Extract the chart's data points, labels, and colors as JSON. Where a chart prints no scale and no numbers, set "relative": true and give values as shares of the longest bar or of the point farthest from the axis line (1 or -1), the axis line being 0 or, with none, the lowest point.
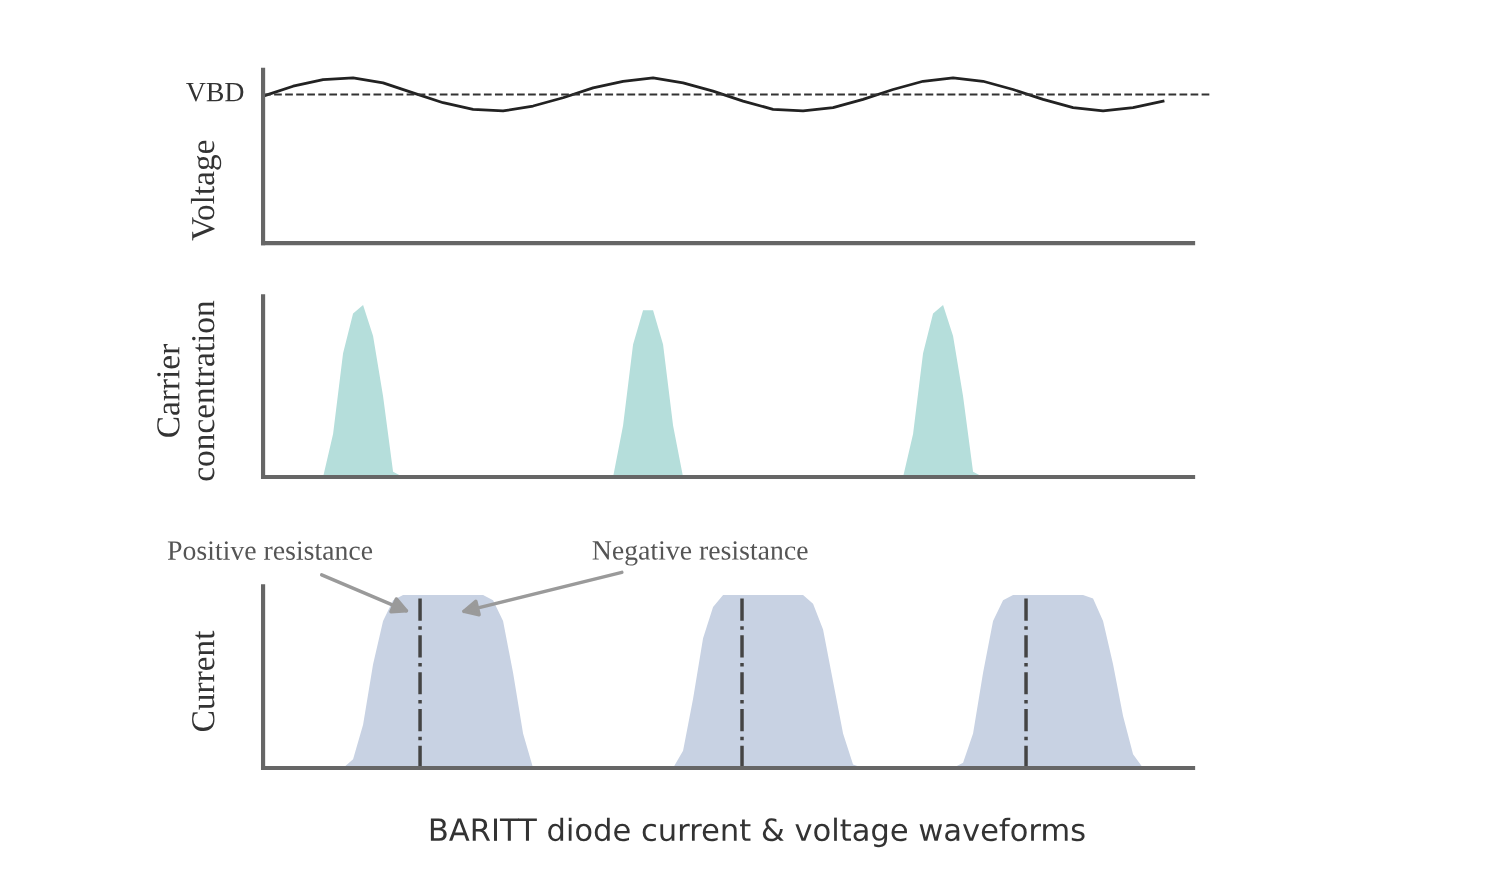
{
  "chart_data": [
    {
      "type": "line",
      "relative": true,
      "ylabel": "Voltage",
      "tick_labels": false,
      "line_style": "solid",
      "marker": "none",
      "categories": [
        null,
        null,
        null,
        null,
        null,
        null,
        null,
        null,
        null,
        null,
        null,
        null,
        null,
        null,
        null,
        null,
        null,
        null,
        null,
        null,
        null,
        null,
        null,
        null,
        null,
        null,
        null,
        null,
        null,
        null,
        null,
        null
      ],
      "series": [
        {
          "color": "#222222",
          "values": [
            0.89,
            0.95,
            0.99,
            1.0,
            0.97,
            0.91,
            0.85,
            0.81,
            0.8,
            0.83,
            0.88,
            0.94,
            0.98,
            1.0,
            0.97,
            0.92,
            0.86,
            0.81,
            0.8,
            0.82,
            0.87,
            0.93,
            0.98,
            1.0,
            0.98,
            0.93,
            0.87,
            0.82,
            0.8,
            0.82,
            0.86,
            null
          ]
        }
      ],
      "ref_lines": [
        {
          "axis": "y",
          "value": 0.9,
          "label": "VBD",
          "color": "#333333",
          "line_style": "dashed"
        }
      ]
    },
    {
      "type": "area",
      "relative": true,
      "ylabel": "Carrier\nconcentration",
      "tick_labels": false,
      "categories": [
        null,
        null,
        null,
        null,
        null,
        null,
        null,
        null,
        null,
        null,
        null,
        null,
        null,
        null,
        null,
        null,
        null,
        null,
        null,
        null,
        null,
        null,
        null,
        null,
        null,
        null,
        null,
        null,
        null,
        null,
        null,
        null,
        null,
        null,
        null,
        null,
        null,
        null,
        null,
        null,
        null,
        null,
        null,
        null,
        null,
        null,
        null,
        null,
        null,
        null,
        null,
        null,
        null,
        null,
        null,
        null,
        null,
        null,
        null,
        null,
        null,
        null,
        null,
        null,
        null,
        null,
        null,
        null,
        null,
        null,
        null,
        null,
        null,
        null,
        null,
        null,
        null,
        null,
        null,
        null,
        null,
        null,
        null,
        null,
        null,
        null,
        null,
        null,
        null,
        null,
        null,
        null,
        null,
        null
      ],
      "series": [
        {
          "color": "#b5dedb",
          "values": [
            0,
            0,
            0,
            0,
            0,
            0,
            0,
            0.25,
            0.72,
            0.95,
            1,
            0.82,
            0.47,
            0.03,
            0,
            0,
            0,
            0,
            0,
            0,
            0,
            0,
            0,
            0,
            0,
            0,
            0,
            0,
            0,
            0,
            0,
            0,
            0,
            0,
            0,
            0,
            0.3,
            0.77,
            0.97,
            0.97,
            0.77,
            0.3,
            0,
            0,
            0,
            0,
            0,
            0,
            0,
            0,
            0,
            0,
            0,
            0,
            0,
            0,
            0,
            0,
            0,
            0,
            0,
            0,
            0,
            0,
            0,
            0.25,
            0.72,
            0.95,
            1,
            0.82,
            0.47,
            0.03,
            0,
            0,
            0,
            0,
            0,
            0,
            0,
            0,
            0,
            0,
            0,
            0,
            0,
            0,
            0,
            0,
            0,
            0,
            0,
            0,
            0,
            0
          ]
        }
      ]
    },
    {
      "type": "area",
      "relative": true,
      "ylabel": "Current",
      "tick_labels": false,
      "categories": [
        null,
        null,
        null,
        null,
        null,
        null,
        null,
        null,
        null,
        null,
        null,
        null,
        null,
        null,
        null,
        null,
        null,
        null,
        null,
        null,
        null,
        null,
        null,
        null,
        null,
        null,
        null,
        null,
        null,
        null,
        null,
        null,
        null,
        null,
        null,
        null,
        null,
        null,
        null,
        null,
        null,
        null,
        null,
        null,
        null,
        null,
        null,
        null,
        null,
        null,
        null,
        null,
        null,
        null,
        null,
        null,
        null,
        null,
        null,
        null,
        null,
        null,
        null,
        null,
        null,
        null,
        null,
        null,
        null,
        null,
        null,
        null,
        null,
        null,
        null,
        null,
        null,
        null,
        null,
        null,
        null,
        null,
        null,
        null,
        null,
        null,
        null,
        null,
        null,
        null,
        null,
        null,
        null,
        null
      ],
      "series": [
        {
          "color": "#c8d2e3",
          "values": [
            0,
            0,
            0,
            0,
            0,
            0,
            0,
            0,
            0,
            0.05,
            0.25,
            0.6,
            0.85,
            0.97,
            1,
            1,
            1,
            1,
            1,
            1,
            1,
            1,
            1,
            0.97,
            0.85,
            0.55,
            0.2,
            0,
            0,
            0,
            0,
            0,
            0,
            0,
            0,
            0,
            0,
            0,
            0,
            0,
            0,
            0,
            0.1,
            0.4,
            0.75,
            0.93,
            1,
            1,
            1,
            1,
            1,
            1,
            1,
            1,
            1,
            0.95,
            0.8,
            0.5,
            0.2,
            0.02,
            0,
            0,
            0,
            0,
            0,
            0,
            0,
            0,
            0,
            0,
            0.03,
            0.2,
            0.55,
            0.85,
            0.97,
            1,
            1,
            1,
            1,
            1,
            1,
            1,
            1,
            0.98,
            0.85,
            0.6,
            0.3,
            0.08,
            0,
            0,
            0,
            0,
            0,
            0
          ]
        }
      ],
      "annotations": [
        "Positive resistance",
        "Negative resistance",
        "BARITT diode current & voltage waveforms"
      ]
    }
  ]
}
